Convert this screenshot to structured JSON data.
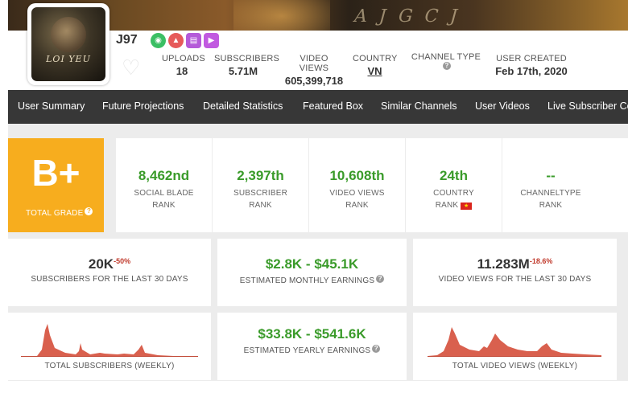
{
  "banner": {
    "script_text": "A J G C J"
  },
  "avatar": {
    "logo_text": "LOI YEU"
  },
  "channel": {
    "name": "J97",
    "badges": [
      "eye-badge-icon",
      "fire-badge-icon",
      "chart-badge-icon",
      "video-badge-icon"
    ],
    "stats": {
      "uploads_label": "UPLOADS",
      "uploads_value": "18",
      "subscribers_label": "SUBSCRIBERS",
      "subscribers_value": "5.71M",
      "views_label": "VIDEO VIEWS",
      "views_value": "605,399,718",
      "country_label": "COUNTRY",
      "country_value": "VN",
      "type_label": "CHANNEL TYPE",
      "type_help": "?",
      "created_label": "USER CREATED",
      "created_value": "Feb 17th, 2020"
    }
  },
  "nav": {
    "items": [
      "User Summary",
      "Future Projections",
      "Detailed Statistics",
      "Featured Box",
      "Similar Channels",
      "User Videos",
      "Live Subscriber Co"
    ]
  },
  "grade": {
    "value": "B+",
    "label": "TOTAL GRADE",
    "help": "?"
  },
  "ranks": [
    {
      "value": "8,462nd",
      "line1": "SOCIAL BLADE",
      "line2": "RANK"
    },
    {
      "value": "2,397th",
      "line1": "SUBSCRIBER",
      "line2": "RANK"
    },
    {
      "value": "10,608th",
      "line1": "VIDEO VIEWS",
      "line2": "RANK"
    },
    {
      "value": "24th",
      "line1": "COUNTRY",
      "line2": "RANK"
    },
    {
      "value": "--",
      "line1": "CHANNELTYPE",
      "line2": "RANK"
    }
  ],
  "metrics": {
    "subs30_value": "20K",
    "subs30_delta": "-50%",
    "subs30_label": "SUBSCRIBERS FOR THE LAST 30 DAYS",
    "monthly_value": "$2.8K  -  $45.1K",
    "monthly_label": "ESTIMATED MONTHLY EARNINGS",
    "monthly_help": "?",
    "views30_value": "11.283M",
    "views30_delta": "-18.6%",
    "views30_label": "VIDEO VIEWS FOR THE LAST 30 DAYS",
    "yearly_value": "$33.8K  -  $541.6K",
    "yearly_label": "ESTIMATED YEARLY EARNINGS",
    "yearly_help": "?",
    "subs_weekly_label": "TOTAL SUBSCRIBERS (WEEKLY)",
    "views_weekly_label": "TOTAL VIDEO VIEWS (WEEKLY)"
  },
  "colors": {
    "accent_green": "#3a9b2a",
    "grade_orange": "#f7ad1e",
    "nav_bg": "#373737",
    "spark_fill": "#d9604e"
  }
}
